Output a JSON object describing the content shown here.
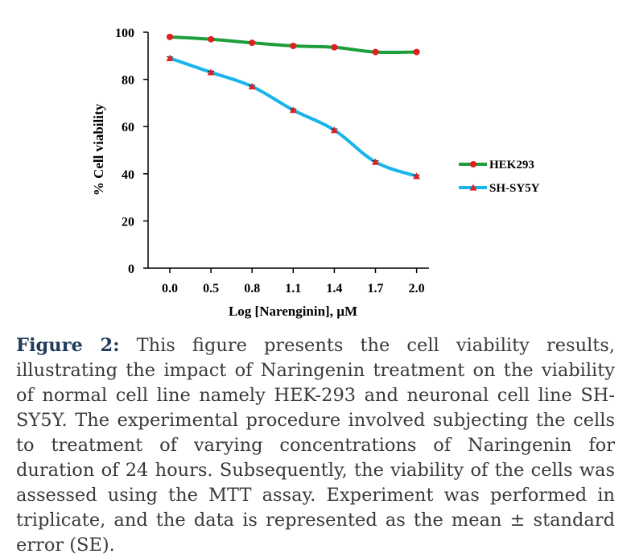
{
  "chart_data": {
    "type": "line",
    "title": "",
    "xlabel": "Log [Narenginin], µM",
    "ylabel": "% Cell viability",
    "x": [
      "0.0",
      "0.5",
      "0.8",
      "1.1",
      "1.4",
      "1.7",
      "2.0"
    ],
    "ylim": [
      0,
      100
    ],
    "yticks": [
      0,
      20,
      40,
      60,
      80,
      100
    ],
    "grid": false,
    "legend_position": "right",
    "series": [
      {
        "name": "HEK293",
        "values": [
          98,
          97,
          95.5,
          94.2,
          93.6,
          91.6,
          91.6
        ],
        "color": "#1e9e3a",
        "marker": "circle",
        "marker_color": "#e02020"
      },
      {
        "name": "SH-SY5Y",
        "values": [
          89,
          83,
          77,
          67,
          58.5,
          45,
          39
        ],
        "color": "#19b4ea",
        "marker": "triangle",
        "marker_color": "#e02020"
      }
    ]
  },
  "caption": {
    "label": "Figure 2:",
    "text": "This figure presents the cell viability results, illustrating the impact of Naringenin treatment on the viability of normal cell line namely HEK-293 and neuronal cell line SH-SY5Y. The experimental procedure involved subjecting the cells to treatment of varying concentrations of Naringenin for duration of 24 hours. Subsequently, the viability of the cells was assessed using the MTT assay. Experiment was performed in triplicate, and the data is represented as the mean ± standard error (SE)."
  }
}
